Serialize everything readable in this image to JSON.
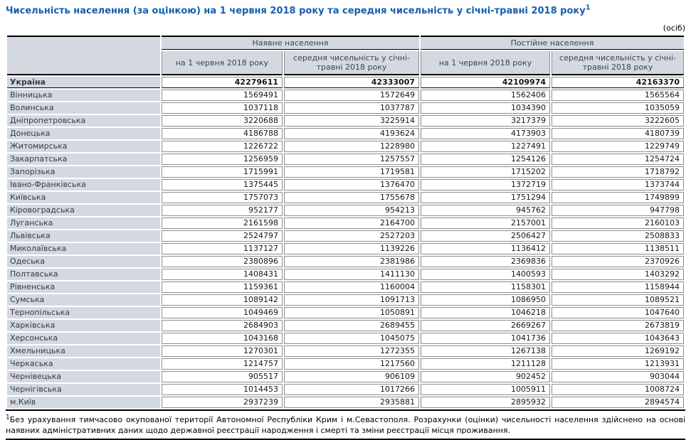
{
  "title": "Чисельність населення (за оцінкою) на 1 червня 2018 року та середня чисельність у січні-травні 2018 року",
  "unit_label": "(осіб)",
  "colors": {
    "title_accent": "#1a5dad",
    "header_bg": "#d4d9e1",
    "grid_line": "#8c8c8c"
  },
  "table": {
    "group_headers": [
      "Наявне населення",
      "Постійне населення"
    ],
    "sub_headers": [
      "на 1 червня 2018 року",
      "середня чисельність у січні-травні 2018 року",
      "на 1 червня 2018 року",
      "середня чисельність у січні-травні 2018 року"
    ],
    "total_row": {
      "label": "Україна",
      "values": [
        "42279611",
        "42333007",
        "42109974",
        "42163370"
      ]
    },
    "rows": [
      {
        "label": "Вінницька",
        "values": [
          "1569491",
          "1572649",
          "1562406",
          "1565564"
        ]
      },
      {
        "label": "Волинська",
        "values": [
          "1037118",
          "1037787",
          "1034390",
          "1035059"
        ]
      },
      {
        "label": "Дніпропетровська",
        "values": [
          "3220688",
          "3225914",
          "3217379",
          "3222605"
        ]
      },
      {
        "label": "Донецька",
        "values": [
          "4186788",
          "4193624",
          "4173903",
          "4180739"
        ]
      },
      {
        "label": "Житомирська",
        "values": [
          "1226722",
          "1228980",
          "1227491",
          "1229749"
        ]
      },
      {
        "label": "Закарпатська",
        "values": [
          "1256959",
          "1257557",
          "1254126",
          "1254724"
        ]
      },
      {
        "label": "Запорізька",
        "values": [
          "1715991",
          "1719581",
          "1715202",
          "1718792"
        ]
      },
      {
        "label": "Івано-Франківська",
        "values": [
          "1375445",
          "1376470",
          "1372719",
          "1373744"
        ]
      },
      {
        "label": "Київська",
        "values": [
          "1757073",
          "1755678",
          "1751294",
          "1749899"
        ]
      },
      {
        "label": "Кіровоградська",
        "values": [
          "952177",
          "954213",
          "945762",
          "947798"
        ]
      },
      {
        "label": "Луганська",
        "values": [
          "2161598",
          "2164700",
          "2157001",
          "2160103"
        ]
      },
      {
        "label": "Львівська",
        "values": [
          "2524797",
          "2527203",
          "2506427",
          "2508833"
        ]
      },
      {
        "label": "Миколаївська",
        "values": [
          "1137127",
          "1139226",
          "1136412",
          "1138511"
        ]
      },
      {
        "label": "Одеська",
        "values": [
          "2380896",
          "2381986",
          "2369836",
          "2370926"
        ]
      },
      {
        "label": "Полтавська",
        "values": [
          "1408431",
          "1411130",
          "1400593",
          "1403292"
        ]
      },
      {
        "label": "Рівненська",
        "values": [
          "1159361",
          "1160004",
          "1158301",
          "1158944"
        ]
      },
      {
        "label": "Сумська",
        "values": [
          "1089142",
          "1091713",
          "1086950",
          "1089521"
        ]
      },
      {
        "label": "Тернопільська",
        "values": [
          "1049469",
          "1050891",
          "1046218",
          "1047640"
        ]
      },
      {
        "label": "Харківська",
        "values": [
          "2684903",
          "2689455",
          "2669267",
          "2673819"
        ]
      },
      {
        "label": "Херсонська",
        "values": [
          "1043168",
          "1045075",
          "1041736",
          "1043643"
        ]
      },
      {
        "label": "Хмельницька",
        "values": [
          "1270301",
          "1272355",
          "1267138",
          "1269192"
        ]
      },
      {
        "label": "Черкаська",
        "values": [
          "1214757",
          "1217560",
          "1211128",
          "1213931"
        ]
      },
      {
        "label": "Чернівецька",
        "values": [
          "905517",
          "906109",
          "902452",
          "903044"
        ]
      },
      {
        "label": "Чернігівська",
        "values": [
          "1014453",
          "1017266",
          "1005911",
          "1008724"
        ]
      },
      {
        "label": "м.Київ",
        "values": [
          "2937239",
          "2935881",
          "2895932",
          "2894574"
        ]
      }
    ]
  },
  "footnote": {
    "marker": "1",
    "text": "Без урахування тимчасово окупованої території Автономної Республіки Крим і м.Севастополя. Розрахунки (оцінки) чисельності населення здійснено на основі наявних адміністративних даних щодо державної реєстрації народження і смерті та зміни реєстрації місця проживання."
  }
}
